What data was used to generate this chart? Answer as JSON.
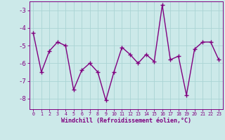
{
  "x": [
    0,
    1,
    2,
    3,
    4,
    5,
    6,
    7,
    8,
    9,
    10,
    11,
    12,
    13,
    14,
    15,
    16,
    17,
    18,
    19,
    20,
    21,
    22,
    23
  ],
  "y": [
    -4.3,
    -6.5,
    -5.3,
    -4.8,
    -5.0,
    -7.5,
    -6.4,
    -6.0,
    -6.5,
    -8.1,
    -6.5,
    -5.1,
    -5.5,
    -6.0,
    -5.5,
    -5.9,
    -2.7,
    -5.8,
    -5.6,
    -7.8,
    -5.2,
    -4.8,
    -4.8,
    -5.8
  ],
  "line_color": "#800080",
  "marker": "+",
  "marker_size": 4,
  "background_color": "#cce9e9",
  "grid_color": "#aad4d4",
  "ylabel_values": [
    -3,
    -4,
    -5,
    -6,
    -7,
    -8
  ],
  "ylim": [
    -8.6,
    -2.5
  ],
  "xlim": [
    -0.5,
    23.5
  ],
  "xlabel": "Windchill (Refroidissement éolien,°C)",
  "xlabel_color": "#800080",
  "tick_color": "#800080",
  "axis_color": "#800080",
  "linewidth": 1.0
}
